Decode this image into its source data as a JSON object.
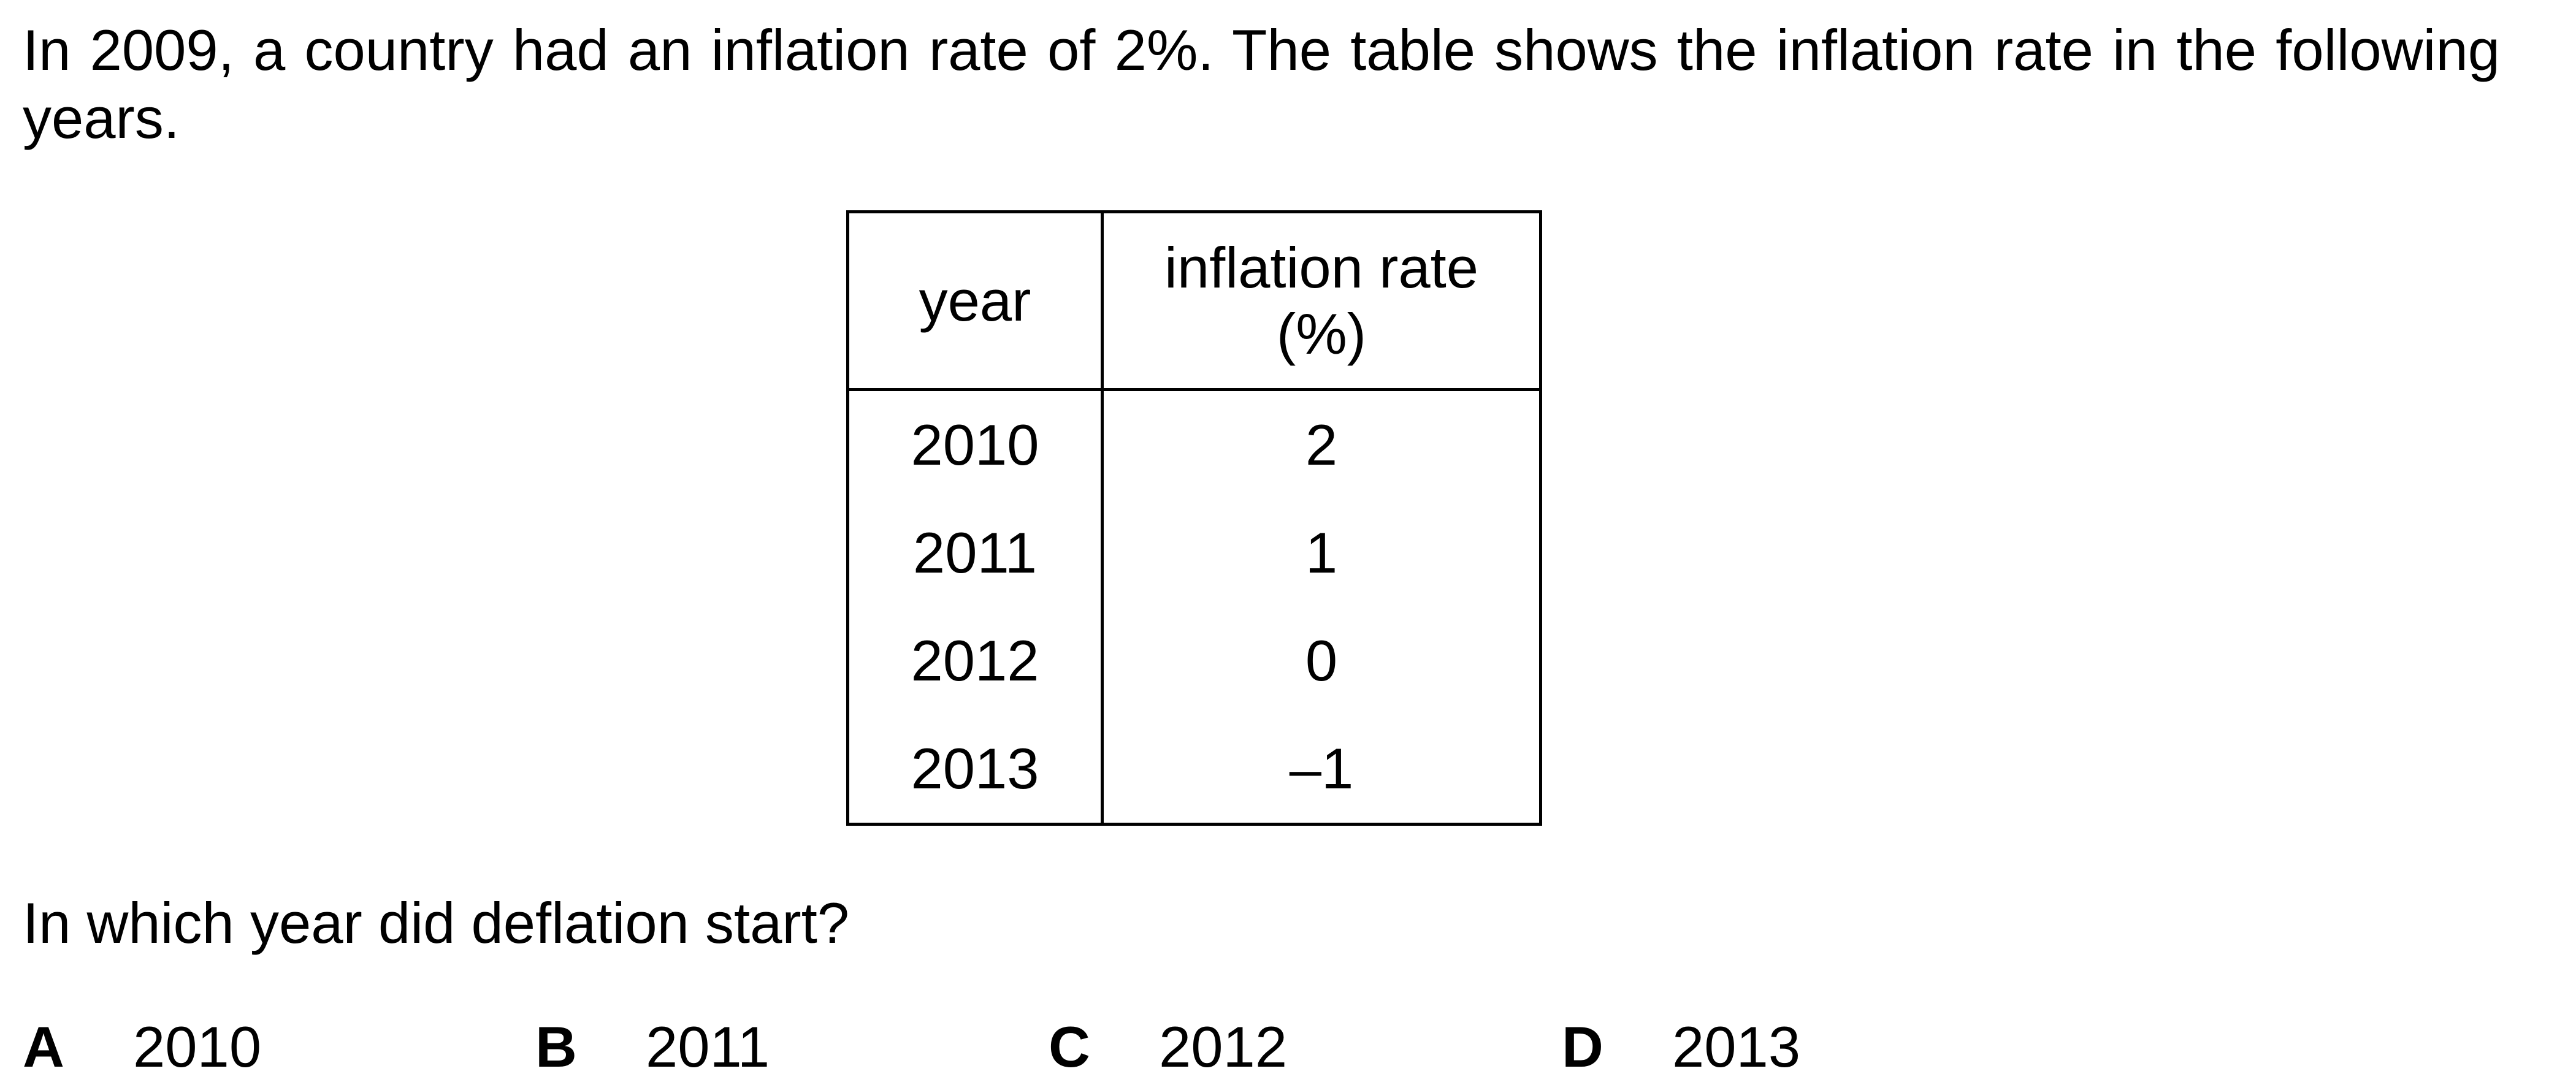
{
  "question": {
    "intro": "In 2009, a country had an inflation rate of 2%. The table shows the inflation rate in the following years.",
    "prompt": "In which year did deflation start?"
  },
  "table": {
    "headers": {
      "year": "year",
      "rate_line1": "inflation rate",
      "rate_line2": "(%)"
    },
    "rows": [
      {
        "year": "2010",
        "rate": "2"
      },
      {
        "year": "2011",
        "rate": "1"
      },
      {
        "year": "2012",
        "rate": "0"
      },
      {
        "year": "2013",
        "rate": "–1"
      }
    ]
  },
  "options": [
    {
      "letter": "A",
      "value": "2010"
    },
    {
      "letter": "B",
      "value": "2011"
    },
    {
      "letter": "C",
      "value": "2012"
    },
    {
      "letter": "D",
      "value": "2013"
    }
  ]
}
